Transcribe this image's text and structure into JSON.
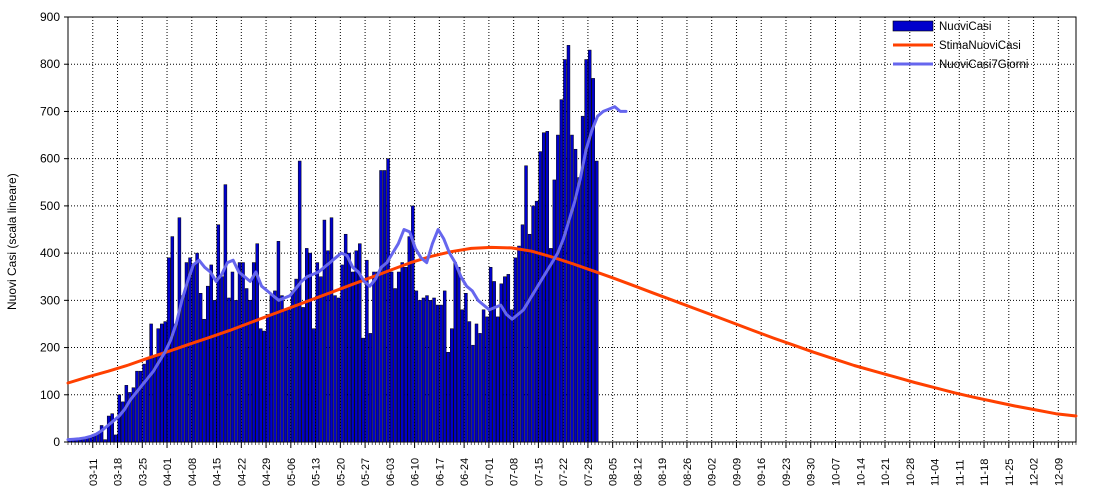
{
  "chart_data": {
    "type": "bar",
    "ylabel": "Nuovi Casi (scala lineare)",
    "ylim": [
      0,
      900
    ],
    "yticks": [
      0,
      100,
      200,
      300,
      400,
      500,
      600,
      700,
      800,
      900
    ],
    "grid": "dotted",
    "legend_position": "top-right",
    "x_start_date": "03-04",
    "x_end_date": "12-14",
    "xtick_labels": [
      "03-11",
      "03-18",
      "03-25",
      "04-01",
      "04-08",
      "04-15",
      "04-22",
      "04-29",
      "05-06",
      "05-13",
      "05-20",
      "05-27",
      "06-03",
      "06-10",
      "06-17",
      "06-24",
      "07-01",
      "07-08",
      "07-15",
      "07-22",
      "07-29",
      "08-05",
      "08-12",
      "08-19",
      "08-26",
      "09-02",
      "09-09",
      "09-16",
      "09-23",
      "09-30",
      "10-07",
      "10-14",
      "10-21",
      "10-28",
      "11-04",
      "11-11",
      "11-18",
      "11-25",
      "12-02",
      "12-09"
    ],
    "series": [
      {
        "name": "NuoviCasi",
        "type": "bar",
        "color": "#0000cc",
        "x_start": "03-04",
        "values": [
          5,
          5,
          5,
          6,
          6,
          8,
          10,
          15,
          20,
          35,
          5,
          55,
          60,
          15,
          100,
          85,
          120,
          105,
          115,
          150,
          150,
          165,
          175,
          250,
          180,
          240,
          250,
          255,
          390,
          435,
          250,
          475,
          310,
          380,
          390,
          375,
          400,
          315,
          260,
          330,
          375,
          300,
          460,
          350,
          545,
          305,
          360,
          300,
          380,
          380,
          325,
          300,
          380,
          420,
          240,
          235,
          270,
          310,
          320,
          425,
          310,
          280,
          280,
          320,
          345,
          595,
          285,
          410,
          400,
          240,
          380,
          350,
          470,
          405,
          475,
          310,
          305,
          375,
          440,
          400,
          360,
          405,
          420,
          220,
          385,
          230,
          360,
          360,
          575,
          575,
          600,
          360,
          325,
          360,
          380,
          370,
          435,
          500,
          320,
          300,
          305,
          310,
          300,
          305,
          290,
          290,
          320,
          190,
          240,
          380,
          370,
          280,
          315,
          255,
          205,
          250,
          230,
          280,
          265,
          370,
          340,
          265,
          335,
          350,
          355,
          280,
          390,
          415,
          460,
          585,
          440,
          500,
          510,
          615,
          655,
          658,
          410,
          555,
          650,
          725,
          810,
          840,
          650,
          620,
          560,
          690,
          810,
          830,
          770,
          595
        ]
      },
      {
        "name": "StimaNuoviCasi",
        "type": "line",
        "color": "#ff4000",
        "x_start": "03-04",
        "values": [
          125,
          138,
          150,
          163,
          178,
          192,
          207,
          221,
          236,
          252,
          268,
          284,
          300,
          316,
          332,
          348,
          364,
          380,
          393,
          403,
          410,
          412,
          411,
          404,
          392,
          378,
          363,
          348,
          332,
          316,
          300,
          284,
          268,
          252,
          236,
          220,
          205,
          190,
          176,
          162,
          150,
          138,
          126,
          115,
          104,
          94,
          85,
          76,
          68,
          60,
          55
        ]
      },
      {
        "name": "NuoviCasi7Giorni",
        "type": "line",
        "color": "#6666ee",
        "x_start": "03-04",
        "values": [
          5,
          6,
          7,
          9,
          12,
          17,
          25,
          35,
          45,
          55,
          70,
          90,
          105,
          120,
          135,
          150,
          170,
          190,
          215,
          250,
          300,
          340,
          375,
          385,
          370,
          360,
          340,
          355,
          380,
          385,
          360,
          350,
          340,
          360,
          330,
          320,
          310,
          300,
          305,
          310,
          325,
          340,
          350,
          355,
          360,
          370,
          380,
          390,
          400,
          395,
          370,
          360,
          340,
          330,
          345,
          370,
          380,
          400,
          420,
          450,
          445,
          410,
          390,
          380,
          420,
          450,
          430,
          400,
          380,
          350,
          330,
          320,
          300,
          290,
          280,
          285,
          290,
          270,
          260,
          270,
          280,
          300,
          320,
          340,
          360,
          380,
          400,
          430,
          470,
          510,
          560,
          620,
          660,
          690,
          700,
          705,
          710,
          700,
          700
        ]
      }
    ]
  }
}
